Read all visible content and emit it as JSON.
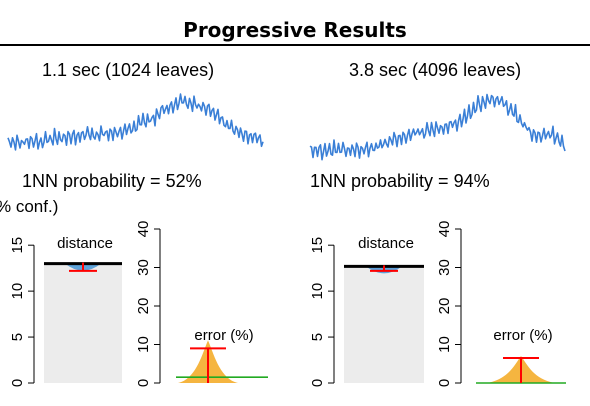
{
  "title": "Progressive Results",
  "colors": {
    "wave": "#3a7fd6",
    "bar_fill": "#ececec",
    "bar_line": "#000000",
    "ci": "#ff0000",
    "violin": "#4f9bd8",
    "error_fill": "#f5b540",
    "baseline": "#22aa22"
  },
  "partial_label": "% conf.)",
  "chart_data": [
    {
      "type": "line",
      "time_label": "1.1 sec (1024 leaves)",
      "prob_label": "1NN probability = 52%",
      "distance_panel": {
        "type": "bar",
        "label": "distance",
        "ticks": [
          "0",
          "5",
          "10",
          "15"
        ],
        "ylim": [
          0,
          16
        ],
        "value": 13.0,
        "ci": [
          12.2,
          13.1
        ]
      },
      "error_panel": {
        "type": "area",
        "label": "error (%)",
        "ticks": [
          "0",
          "10",
          "20",
          "30",
          "40"
        ],
        "ylim": [
          0,
          40
        ],
        "ci_top": 9,
        "mean": 1.5
      }
    },
    {
      "type": "line",
      "time_label": "3.8 sec (4096 leaves)",
      "prob_label": "1NN probability = 94%",
      "distance_panel": {
        "type": "bar",
        "label": "distance",
        "ticks": [
          "0",
          "5",
          "10",
          "15"
        ],
        "ylim": [
          0,
          16
        ],
        "value": 12.7,
        "ci": [
          12.2,
          12.8
        ]
      },
      "error_panel": {
        "type": "area",
        "label": "error (%)",
        "ticks": [
          "0",
          "10",
          "20",
          "30",
          "40"
        ],
        "ylim": [
          0,
          40
        ],
        "ci_top": 6.5,
        "mean": 0
      }
    }
  ]
}
